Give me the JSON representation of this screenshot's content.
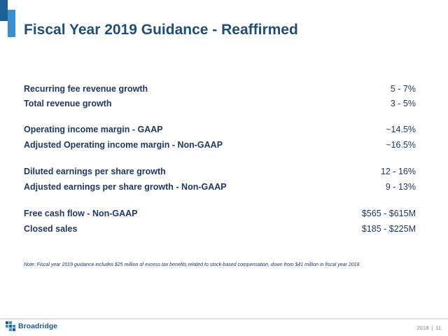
{
  "header": {
    "title": "Fiscal Year 2019 Guidance - Reaffirmed"
  },
  "colors": {
    "title": "#1f4e79",
    "text": "#1f3864",
    "accent_dark": "#1a5f96",
    "accent_light": "#3a8fcf"
  },
  "guidance": [
    {
      "label": "Recurring fee revenue growth",
      "value": "5 - 7%"
    },
    {
      "label": "Total revenue growth",
      "value": "3 - 5%"
    },
    {
      "label": "Operating income margin - GAAP",
      "value": "~14.5%"
    },
    {
      "label": "Adjusted Operating income margin - Non-GAAP",
      "value": "~16.5%"
    },
    {
      "label": "Diluted earnings per share growth",
      "value": "12 - 16%"
    },
    {
      "label": "Adjusted earnings per share growth - Non-GAAP",
      "value": "9 - 13%"
    },
    {
      "label": "Free cash flow - Non-GAAP",
      "value": "$565 - $615M"
    },
    {
      "label": "Closed sales",
      "value": "$185 - $225M"
    }
  ],
  "note": "Note: Fiscal year 2019 guidance includes $25 million of excess tax benefits related to stock-based compensation, down from $41 million in fiscal year 2018.",
  "footer": {
    "logo_text": "Broadridge",
    "logo_icon": "broadridge-logo-icon",
    "year": "2018",
    "separator": "|",
    "page": "11"
  }
}
